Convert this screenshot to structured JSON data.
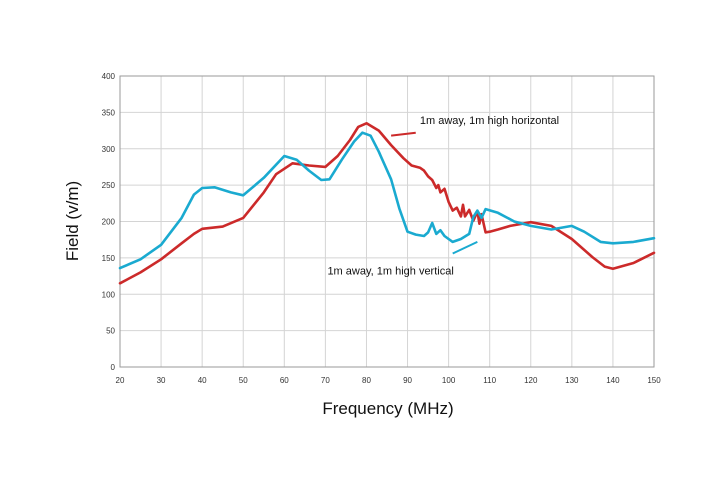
{
  "chart_data": {
    "type": "line",
    "title": "",
    "xlabel": "Frequency (MHz)",
    "ylabel": "Field (v/m)",
    "xlim": [
      20,
      150
    ],
    "ylim": [
      0,
      400
    ],
    "x_ticks": [
      20,
      30,
      40,
      50,
      60,
      70,
      80,
      90,
      100,
      110,
      120,
      130,
      140,
      150
    ],
    "y_ticks": [
      0,
      50,
      100,
      150,
      200,
      250,
      300,
      350,
      400
    ],
    "grid": true,
    "legend": "none",
    "series": [
      {
        "name": "1m away, 1m high horizontal",
        "color": "#cc2a2a",
        "points": [
          [
            20,
            115
          ],
          [
            25,
            130
          ],
          [
            30,
            148
          ],
          [
            35,
            170
          ],
          [
            38,
            183
          ],
          [
            40,
            190
          ],
          [
            45,
            193
          ],
          [
            50,
            205
          ],
          [
            55,
            240
          ],
          [
            58,
            265
          ],
          [
            62,
            280
          ],
          [
            66,
            277
          ],
          [
            70,
            275
          ],
          [
            73,
            290
          ],
          [
            76,
            312
          ],
          [
            78,
            330
          ],
          [
            80,
            335
          ],
          [
            83,
            325
          ],
          [
            86,
            305
          ],
          [
            89,
            287
          ],
          [
            91,
            277
          ],
          [
            93,
            274
          ],
          [
            94,
            270
          ],
          [
            95,
            262
          ],
          [
            96,
            257
          ],
          [
            97,
            246
          ],
          [
            97.5,
            250
          ],
          [
            98,
            240
          ],
          [
            99,
            245
          ],
          [
            100,
            227
          ],
          [
            101,
            215
          ],
          [
            102,
            219
          ],
          [
            103,
            207
          ],
          [
            103.5,
            223
          ],
          [
            104,
            207
          ],
          [
            105,
            216
          ],
          [
            106,
            201
          ],
          [
            107,
            214
          ],
          [
            107.5,
            197
          ],
          [
            108,
            210
          ],
          [
            109,
            185
          ],
          [
            110,
            186
          ],
          [
            112,
            189
          ],
          [
            115,
            194
          ],
          [
            120,
            199
          ],
          [
            125,
            194
          ],
          [
            130,
            176
          ],
          [
            135,
            151
          ],
          [
            138,
            138
          ],
          [
            140,
            135
          ],
          [
            145,
            143
          ],
          [
            150,
            157
          ]
        ]
      },
      {
        "name": "1m away, 1m high vertical",
        "color": "#1aaad0",
        "points": [
          [
            20,
            136
          ],
          [
            25,
            148
          ],
          [
            30,
            168
          ],
          [
            35,
            205
          ],
          [
            38,
            237
          ],
          [
            40,
            246
          ],
          [
            43,
            247
          ],
          [
            47,
            240
          ],
          [
            50,
            236
          ],
          [
            55,
            260
          ],
          [
            60,
            290
          ],
          [
            63,
            285
          ],
          [
            66,
            270
          ],
          [
            69,
            257
          ],
          [
            71,
            258
          ],
          [
            74,
            285
          ],
          [
            77,
            310
          ],
          [
            79,
            322
          ],
          [
            81,
            318
          ],
          [
            83,
            296
          ],
          [
            86,
            258
          ],
          [
            88,
            218
          ],
          [
            90,
            186
          ],
          [
            92,
            182
          ],
          [
            94,
            180
          ],
          [
            95,
            185
          ],
          [
            96,
            198
          ],
          [
            97,
            183
          ],
          [
            98,
            188
          ],
          [
            99,
            180
          ],
          [
            100,
            176
          ],
          [
            101,
            172
          ],
          [
            103,
            176
          ],
          [
            105,
            183
          ],
          [
            106,
            206
          ],
          [
            107,
            215
          ],
          [
            108,
            205
          ],
          [
            109,
            217
          ],
          [
            112,
            212
          ],
          [
            116,
            200
          ],
          [
            120,
            194
          ],
          [
            125,
            189
          ],
          [
            130,
            194
          ],
          [
            133,
            186
          ],
          [
            137,
            172
          ],
          [
            140,
            170
          ],
          [
            145,
            172
          ],
          [
            150,
            177
          ]
        ]
      }
    ],
    "annotations": [
      {
        "text": "1m away, 1m high horizontal",
        "x": 93,
        "y": 334,
        "series": 0,
        "arrow_from": [
          92,
          322
        ],
        "arrow_to": [
          86,
          318
        ]
      },
      {
        "text": "1m away, 1m high vertical",
        "x": 70.5,
        "y": 127,
        "series": 1,
        "arrow_from": [
          101,
          156
        ],
        "arrow_to": [
          107,
          172
        ]
      }
    ]
  }
}
